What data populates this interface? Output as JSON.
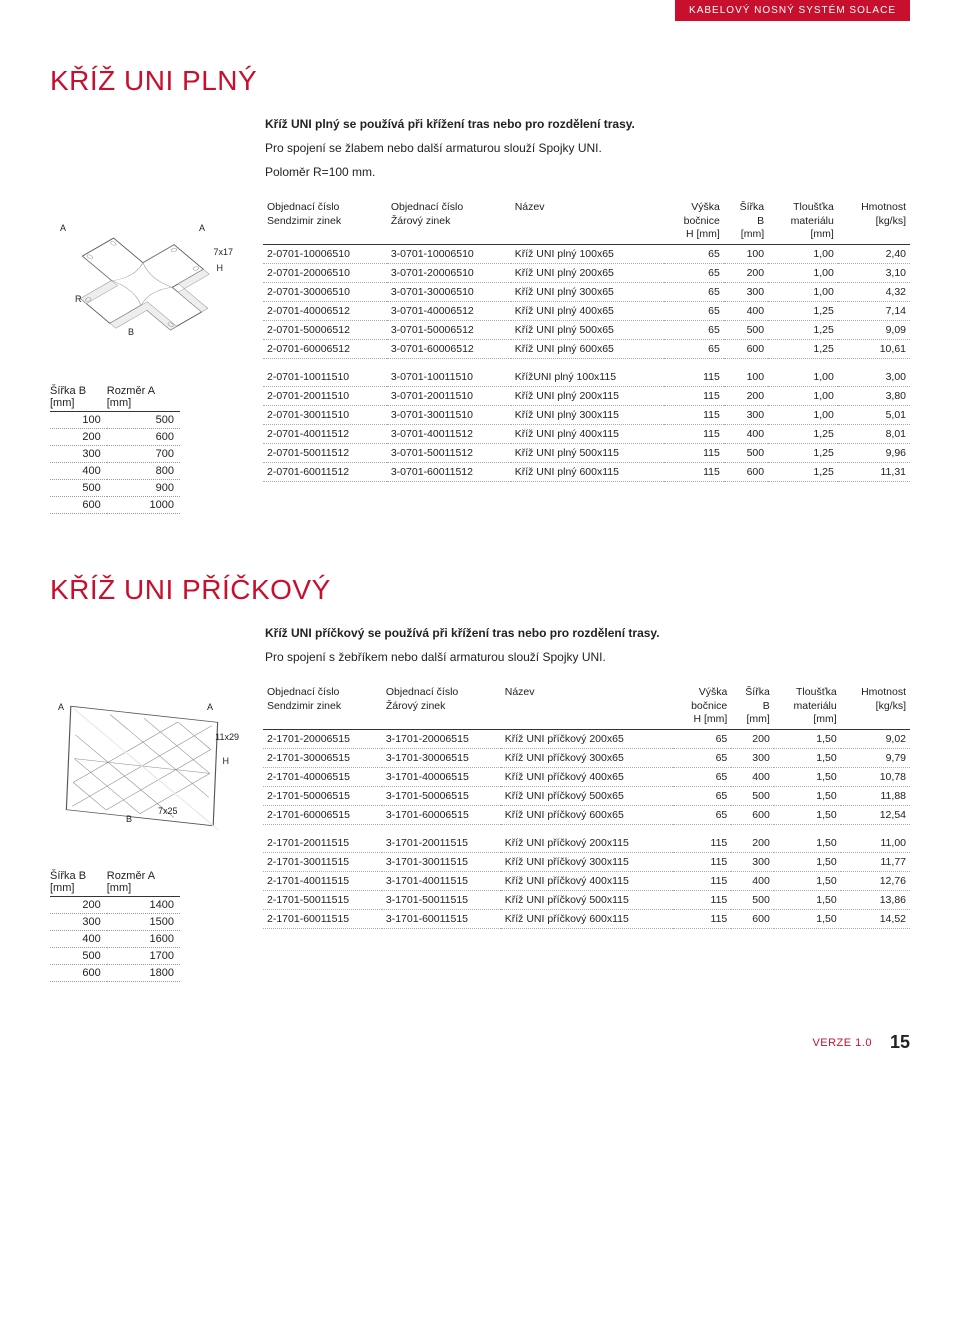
{
  "breadcrumb": "KABELOVÝ NOSNÝ SYSTÉM SOLACE",
  "section1": {
    "title": "KŘÍŽ UNI PLNÝ",
    "intro1": "Kříž UNI plný se používá při křížení tras nebo pro rozdělení trasy.",
    "intro2": "Pro spojení se žlabem nebo další armaturou slouží Spojky UNI.",
    "intro3": "Poloměr R=100 mm.",
    "diagram_labels": {
      "a1": "A",
      "a2": "A",
      "b": "B",
      "r": "R",
      "h": "H",
      "dim": "7x17"
    },
    "small_table": {
      "headers": [
        "Šířka B\n[mm]",
        "Rozměr A\n[mm]"
      ],
      "rows": [
        [
          "100",
          "500"
        ],
        [
          "200",
          "600"
        ],
        [
          "300",
          "700"
        ],
        [
          "400",
          "800"
        ],
        [
          "500",
          "900"
        ],
        [
          "600",
          "1000"
        ]
      ]
    },
    "main_table": {
      "headers": [
        "Objednací číslo\nSendzimir zinek",
        "Objednací číslo\nŽárový zinek",
        "Název",
        "Výška\nbočnice\nH [mm]",
        "Šířka\nB\n[mm]",
        "Tloušťka\nmateriálu\n[mm]",
        "Hmotnost\n[kg/ks]"
      ],
      "block1": [
        [
          "2-0701-10006510",
          "3-0701-10006510",
          "Kříž UNI plný 100x65",
          "65",
          "100",
          "1,00",
          "2,40"
        ],
        [
          "2-0701-20006510",
          "3-0701-20006510",
          "Kříž UNI plný 200x65",
          "65",
          "200",
          "1,00",
          "3,10"
        ],
        [
          "2-0701-30006510",
          "3-0701-30006510",
          "Kříž UNI plný 300x65",
          "65",
          "300",
          "1,00",
          "4,32"
        ],
        [
          "2-0701-40006512",
          "3-0701-40006512",
          "Kříž UNI plný 400x65",
          "65",
          "400",
          "1,25",
          "7,14"
        ],
        [
          "2-0701-50006512",
          "3-0701-50006512",
          "Kříž UNI plný 500x65",
          "65",
          "500",
          "1,25",
          "9,09"
        ],
        [
          "2-0701-60006512",
          "3-0701-60006512",
          "Kříž UNI plný 600x65",
          "65",
          "600",
          "1,25",
          "10,61"
        ]
      ],
      "block2": [
        [
          "2-0701-10011510",
          "3-0701-10011510",
          "KřížUNI plný 100x115",
          "115",
          "100",
          "1,00",
          "3,00"
        ],
        [
          "2-0701-20011510",
          "3-0701-20011510",
          "Kříž UNI plný 200x115",
          "115",
          "200",
          "1,00",
          "3,80"
        ],
        [
          "2-0701-30011510",
          "3-0701-30011510",
          "Kříž UNI plný 300x115",
          "115",
          "300",
          "1,00",
          "5,01"
        ],
        [
          "2-0701-40011512",
          "3-0701-40011512",
          "Kříž UNI plný 400x115",
          "115",
          "400",
          "1,25",
          "8,01"
        ],
        [
          "2-0701-50011512",
          "3-0701-50011512",
          "Kříž UNI plný 500x115",
          "115",
          "500",
          "1,25",
          "9,96"
        ],
        [
          "2-0701-60011512",
          "3-0701-60011512",
          "Kříž UNI plný 600x115",
          "115",
          "600",
          "1,25",
          "11,31"
        ]
      ]
    }
  },
  "section2": {
    "title": "KŘÍŽ UNI PŘÍČKOVÝ",
    "intro1": "Kříž UNI příčkový se používá při křížení tras nebo pro rozdělení trasy.",
    "intro2": "Pro spojení s žebříkem nebo další armaturou slouží Spojky UNI.",
    "diagram_labels": {
      "a1": "A",
      "a2": "A",
      "b": "B",
      "h": "H",
      "dim1": "11x29",
      "dim2": "7x25"
    },
    "small_table": {
      "headers": [
        "Šířka B\n[mm]",
        "Rozměr A\n[mm]"
      ],
      "rows": [
        [
          "200",
          "1400"
        ],
        [
          "300",
          "1500"
        ],
        [
          "400",
          "1600"
        ],
        [
          "500",
          "1700"
        ],
        [
          "600",
          "1800"
        ]
      ]
    },
    "main_table": {
      "headers": [
        "Objednací číslo\nSendzimir zinek",
        "Objednací číslo\nŽárový zinek",
        "Název",
        "Výška\nbočnice\nH [mm]",
        "Šířka\nB\n[mm]",
        "Tloušťka\nmateriálu\n[mm]",
        "Hmotnost\n[kg/ks]"
      ],
      "block1": [
        [
          "2-1701-20006515",
          "3-1701-20006515",
          "Kříž UNI příčkový 200x65",
          "65",
          "200",
          "1,50",
          "9,02"
        ],
        [
          "2-1701-30006515",
          "3-1701-30006515",
          "Kříž UNI příčkový 300x65",
          "65",
          "300",
          "1,50",
          "9,79"
        ],
        [
          "2-1701-40006515",
          "3-1701-40006515",
          "Kříž UNI příčkový 400x65",
          "65",
          "400",
          "1,50",
          "10,78"
        ],
        [
          "2-1701-50006515",
          "3-1701-50006515",
          "Kříž UNI příčkový 500x65",
          "65",
          "500",
          "1,50",
          "11,88"
        ],
        [
          "2-1701-60006515",
          "3-1701-60006515",
          "Kříž UNI příčkový 600x65",
          "65",
          "600",
          "1,50",
          "12,54"
        ]
      ],
      "block2": [
        [
          "2-1701-20011515",
          "3-1701-20011515",
          "Kříž UNI příčkový 200x115",
          "115",
          "200",
          "1,50",
          "11,00"
        ],
        [
          "2-1701-30011515",
          "3-1701-30011515",
          "Kříž UNI příčkový 300x115",
          "115",
          "300",
          "1,50",
          "11,77"
        ],
        [
          "2-1701-40011515",
          "3-1701-40011515",
          "Kříž UNI příčkový 400x115",
          "115",
          "400",
          "1,50",
          "12,76"
        ],
        [
          "2-1701-50011515",
          "3-1701-50011515",
          "Kříž UNI příčkový 500x115",
          "115",
          "500",
          "1,50",
          "13,86"
        ],
        [
          "2-1701-60011515",
          "3-1701-60011515",
          "Kříž UNI příčkový 600x115",
          "115",
          "600",
          "1,50",
          "14,52"
        ]
      ]
    }
  },
  "footer": {
    "version": "VERZE 1.0",
    "page": "15"
  },
  "colors": {
    "accent": "#c8102e",
    "text": "#222",
    "border": "#333",
    "dotted": "#aaa"
  }
}
